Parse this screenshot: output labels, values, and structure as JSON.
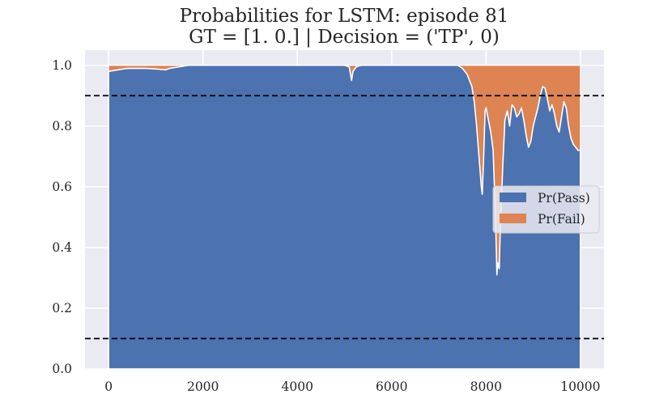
{
  "chart_data": {
    "type": "area",
    "stacked": true,
    "title": "Probabilities for LSTM: episode 81",
    "subtitle": "GT = [1. 0.] | Decision = ('TP', 0)",
    "xlabel": "",
    "ylabel": "",
    "xlim": [
      -500,
      10500
    ],
    "ylim": [
      0,
      1.05
    ],
    "xticks": [
      0,
      2000,
      4000,
      6000,
      8000,
      10000
    ],
    "xtick_labels": [
      "0",
      "2000",
      "4000",
      "6000",
      "8000",
      "10000"
    ],
    "yticks": [
      0.0,
      0.2,
      0.4,
      0.6,
      0.8,
      1.0
    ],
    "ytick_labels": [
      "0.0",
      "0.2",
      "0.4",
      "0.6",
      "0.8",
      "1.0"
    ],
    "grid": true,
    "legend_position": "center-right",
    "thresholds": [
      0.9,
      0.1
    ],
    "x": [
      0,
      200,
      400,
      600,
      800,
      1000,
      1200,
      1300,
      1500,
      1700,
      2000,
      3000,
      4000,
      5000,
      5100,
      5150,
      5180,
      5250,
      5350,
      5500,
      6000,
      7000,
      7400,
      7500,
      7600,
      7700,
      7750,
      7800,
      7850,
      7900,
      7920,
      7950,
      7980,
      8000,
      8050,
      8100,
      8150,
      8200,
      8230,
      8250,
      8280,
      8300,
      8350,
      8400,
      8450,
      8500,
      8550,
      8600,
      8650,
      8700,
      8750,
      8800,
      8850,
      8900,
      8950,
      9000,
      9050,
      9100,
      9150,
      9200,
      9250,
      9300,
      9350,
      9400,
      9450,
      9500,
      9550,
      9600,
      9650,
      9700,
      9750,
      9800,
      9850,
      9900,
      9950,
      10000
    ],
    "series": [
      {
        "name": "Pr(Pass)",
        "color": "#4c72b0",
        "values": [
          0.98,
          0.985,
          0.99,
          0.99,
          0.99,
          0.988,
          0.985,
          0.99,
          0.995,
          1.0,
          1.0,
          1.0,
          1.0,
          1.0,
          0.995,
          0.95,
          0.98,
          0.995,
          1.0,
          1.0,
          1.0,
          1.0,
          1.0,
          0.99,
          0.97,
          0.93,
          0.88,
          0.8,
          0.7,
          0.6,
          0.575,
          0.7,
          0.85,
          0.86,
          0.82,
          0.78,
          0.72,
          0.5,
          0.31,
          0.35,
          0.33,
          0.45,
          0.65,
          0.82,
          0.85,
          0.8,
          0.87,
          0.86,
          0.83,
          0.84,
          0.86,
          0.82,
          0.77,
          0.73,
          0.75,
          0.8,
          0.83,
          0.86,
          0.9,
          0.93,
          0.925,
          0.89,
          0.85,
          0.87,
          0.84,
          0.8,
          0.78,
          0.83,
          0.88,
          0.86,
          0.8,
          0.76,
          0.74,
          0.73,
          0.72,
          0.72
        ]
      },
      {
        "name": "Pr(Fail)",
        "color": "#dd8452",
        "values": "1 - Pr(Pass)"
      }
    ],
    "legend": [
      "Pr(Pass)",
      "Pr(Fail)"
    ]
  }
}
